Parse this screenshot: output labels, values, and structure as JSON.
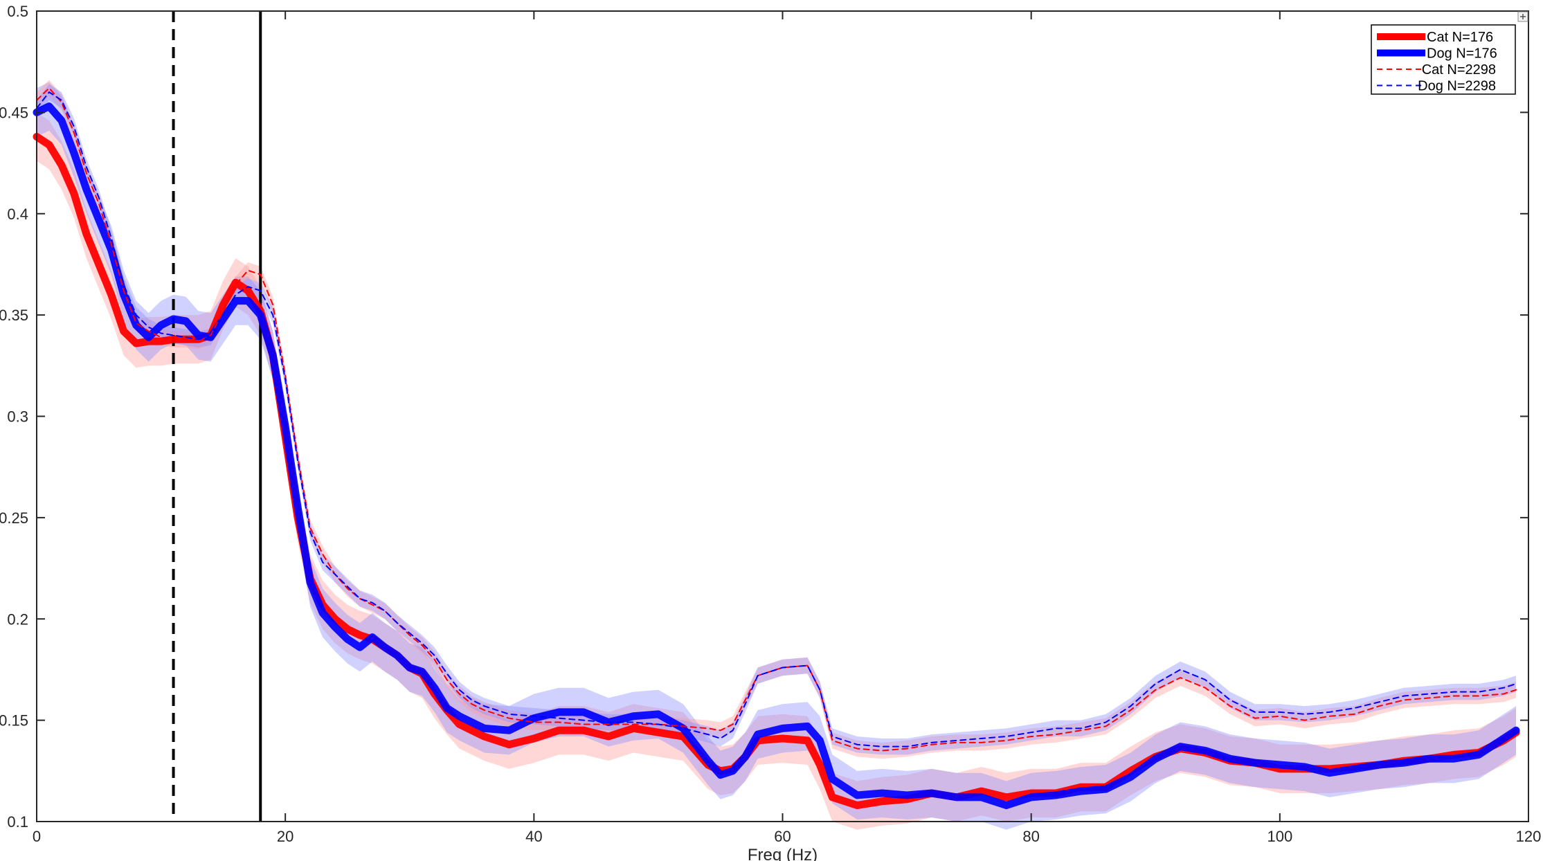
{
  "chart_data": {
    "type": "line",
    "title": "",
    "xlabel": "Freq (Hz)",
    "ylabel": "",
    "xlim": [
      0,
      120
    ],
    "ylim": [
      0.1,
      0.5
    ],
    "xticks": [
      0,
      20,
      40,
      60,
      80,
      100,
      120
    ],
    "xtick_labels": [
      "0",
      "20",
      "40",
      "60",
      "80",
      "100",
      "120"
    ],
    "yticks": [
      0.1,
      0.15,
      0.2,
      0.25,
      0.3,
      0.35,
      0.4,
      0.45,
      0.5
    ],
    "ytick_labels": [
      "0.1",
      "0.15",
      "0.2",
      "0.25",
      "0.3",
      "0.35",
      "0.4",
      "0.45",
      "0.5"
    ],
    "grid": false,
    "legend_position": "top-right",
    "vlines": [
      {
        "x": 11,
        "style": "dashed",
        "color": "#000000"
      },
      {
        "x": 18,
        "style": "solid",
        "color": "#000000"
      }
    ],
    "series": [
      {
        "name": "Cat N=176",
        "color": "#ff0000",
        "style": "thick",
        "band": 0.012,
        "x": [
          0,
          1,
          2,
          3,
          4,
          5,
          6,
          7,
          8,
          9,
          10,
          11,
          12,
          13,
          14,
          15,
          16,
          17,
          18,
          19,
          20,
          21,
          22,
          23,
          24,
          25,
          26,
          27,
          28,
          29,
          30,
          31,
          32,
          33,
          34,
          35,
          36,
          38,
          40,
          42,
          44,
          46,
          48,
          50,
          52,
          54,
          55,
          56,
          57,
          58,
          60,
          62,
          63,
          64,
          66,
          68,
          70,
          72,
          74,
          76,
          78,
          80,
          82,
          84,
          86,
          88,
          90,
          92,
          94,
          96,
          98,
          100,
          102,
          104,
          106,
          108,
          110,
          112,
          114,
          116,
          118,
          119
        ],
        "y": [
          0.438,
          0.434,
          0.424,
          0.41,
          0.39,
          0.375,
          0.36,
          0.342,
          0.336,
          0.337,
          0.337,
          0.338,
          0.338,
          0.338,
          0.34,
          0.355,
          0.366,
          0.362,
          0.352,
          0.33,
          0.29,
          0.25,
          0.22,
          0.207,
          0.2,
          0.195,
          0.192,
          0.19,
          0.186,
          0.182,
          0.176,
          0.173,
          0.163,
          0.155,
          0.148,
          0.145,
          0.142,
          0.138,
          0.141,
          0.145,
          0.145,
          0.142,
          0.146,
          0.144,
          0.142,
          0.128,
          0.125,
          0.126,
          0.132,
          0.14,
          0.141,
          0.14,
          0.128,
          0.112,
          0.108,
          0.11,
          0.111,
          0.114,
          0.112,
          0.115,
          0.112,
          0.114,
          0.114,
          0.117,
          0.117,
          0.125,
          0.132,
          0.136,
          0.134,
          0.13,
          0.129,
          0.126,
          0.126,
          0.126,
          0.127,
          0.128,
          0.13,
          0.131,
          0.133,
          0.134,
          0.14,
          0.144
        ]
      },
      {
        "name": "Dog N=176",
        "color": "#0000ff",
        "style": "thick",
        "band": 0.012,
        "x": [
          0,
          1,
          2,
          3,
          4,
          5,
          6,
          7,
          8,
          9,
          10,
          11,
          12,
          13,
          14,
          15,
          16,
          17,
          18,
          19,
          20,
          21,
          22,
          23,
          24,
          25,
          26,
          27,
          28,
          29,
          30,
          31,
          32,
          33,
          34,
          35,
          36,
          38,
          40,
          42,
          44,
          46,
          48,
          50,
          52,
          54,
          55,
          56,
          57,
          58,
          60,
          62,
          63,
          64,
          66,
          68,
          70,
          72,
          74,
          76,
          78,
          80,
          82,
          84,
          86,
          88,
          90,
          92,
          94,
          96,
          98,
          100,
          102,
          104,
          106,
          108,
          110,
          112,
          114,
          116,
          118,
          119
        ],
        "y": [
          0.45,
          0.453,
          0.446,
          0.43,
          0.412,
          0.397,
          0.382,
          0.36,
          0.345,
          0.339,
          0.345,
          0.348,
          0.347,
          0.34,
          0.339,
          0.348,
          0.357,
          0.357,
          0.35,
          0.33,
          0.295,
          0.255,
          0.218,
          0.203,
          0.196,
          0.19,
          0.186,
          0.191,
          0.186,
          0.182,
          0.176,
          0.174,
          0.166,
          0.156,
          0.152,
          0.149,
          0.146,
          0.145,
          0.151,
          0.154,
          0.154,
          0.149,
          0.152,
          0.153,
          0.146,
          0.13,
          0.123,
          0.125,
          0.132,
          0.143,
          0.146,
          0.147,
          0.14,
          0.121,
          0.113,
          0.114,
          0.113,
          0.114,
          0.112,
          0.112,
          0.108,
          0.112,
          0.113,
          0.115,
          0.116,
          0.122,
          0.131,
          0.137,
          0.135,
          0.131,
          0.129,
          0.128,
          0.127,
          0.124,
          0.126,
          0.128,
          0.129,
          0.131,
          0.131,
          0.133,
          0.141,
          0.145
        ]
      },
      {
        "name": "Cat N=2298",
        "color": "#ff0000",
        "style": "dashed",
        "band": 0.004,
        "x": [
          0,
          1,
          2,
          3,
          4,
          5,
          6,
          7,
          8,
          9,
          10,
          11,
          12,
          13,
          14,
          15,
          16,
          17,
          18,
          19,
          20,
          21,
          22,
          23,
          24,
          25,
          26,
          27,
          28,
          29,
          30,
          31,
          32,
          33,
          34,
          35,
          36,
          38,
          40,
          42,
          44,
          46,
          48,
          50,
          52,
          54,
          55,
          56,
          57,
          58,
          60,
          62,
          63,
          64,
          66,
          68,
          70,
          72,
          74,
          76,
          78,
          80,
          82,
          84,
          86,
          88,
          90,
          92,
          94,
          96,
          98,
          100,
          102,
          104,
          106,
          108,
          110,
          112,
          114,
          116,
          118,
          119
        ],
        "y": [
          0.456,
          0.462,
          0.455,
          0.44,
          0.42,
          0.405,
          0.385,
          0.362,
          0.346,
          0.342,
          0.339,
          0.338,
          0.338,
          0.337,
          0.34,
          0.352,
          0.365,
          0.372,
          0.37,
          0.355,
          0.32,
          0.28,
          0.245,
          0.232,
          0.222,
          0.215,
          0.21,
          0.207,
          0.204,
          0.198,
          0.192,
          0.187,
          0.18,
          0.17,
          0.163,
          0.158,
          0.155,
          0.151,
          0.149,
          0.149,
          0.148,
          0.148,
          0.148,
          0.148,
          0.147,
          0.146,
          0.145,
          0.148,
          0.16,
          0.172,
          0.176,
          0.177,
          0.165,
          0.14,
          0.136,
          0.135,
          0.136,
          0.138,
          0.139,
          0.139,
          0.14,
          0.142,
          0.143,
          0.145,
          0.147,
          0.155,
          0.165,
          0.171,
          0.166,
          0.157,
          0.151,
          0.152,
          0.15,
          0.152,
          0.153,
          0.157,
          0.16,
          0.161,
          0.162,
          0.162,
          0.163,
          0.165
        ]
      },
      {
        "name": "Dog N=2298",
        "color": "#0000ff",
        "style": "dashed",
        "band": 0.004,
        "x": [
          0,
          1,
          2,
          3,
          4,
          5,
          6,
          7,
          8,
          9,
          10,
          11,
          12,
          13,
          14,
          15,
          16,
          17,
          18,
          19,
          20,
          21,
          22,
          23,
          24,
          25,
          26,
          27,
          28,
          29,
          30,
          31,
          32,
          33,
          34,
          35,
          36,
          38,
          40,
          42,
          44,
          46,
          48,
          50,
          52,
          54,
          55,
          56,
          57,
          58,
          60,
          62,
          63,
          64,
          66,
          68,
          70,
          72,
          74,
          76,
          78,
          80,
          82,
          84,
          86,
          88,
          90,
          92,
          94,
          96,
          98,
          100,
          102,
          104,
          106,
          108,
          110,
          112,
          114,
          116,
          118,
          119
        ],
        "y": [
          0.452,
          0.46,
          0.456,
          0.443,
          0.423,
          0.408,
          0.388,
          0.365,
          0.35,
          0.344,
          0.341,
          0.34,
          0.339,
          0.338,
          0.339,
          0.35,
          0.36,
          0.364,
          0.362,
          0.35,
          0.318,
          0.278,
          0.243,
          0.228,
          0.222,
          0.216,
          0.21,
          0.208,
          0.204,
          0.198,
          0.193,
          0.188,
          0.182,
          0.173,
          0.165,
          0.16,
          0.157,
          0.153,
          0.152,
          0.151,
          0.15,
          0.149,
          0.149,
          0.148,
          0.146,
          0.143,
          0.141,
          0.145,
          0.158,
          0.172,
          0.176,
          0.177,
          0.165,
          0.142,
          0.138,
          0.137,
          0.137,
          0.139,
          0.14,
          0.141,
          0.142,
          0.144,
          0.146,
          0.146,
          0.149,
          0.157,
          0.168,
          0.175,
          0.17,
          0.16,
          0.154,
          0.154,
          0.153,
          0.154,
          0.156,
          0.159,
          0.162,
          0.163,
          0.164,
          0.164,
          0.166,
          0.168
        ]
      }
    ]
  }
}
